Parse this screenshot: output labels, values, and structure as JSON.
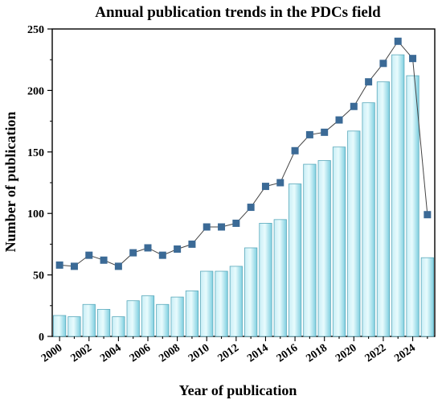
{
  "chart_data": {
    "type": "bar",
    "title": "Annual publication trends in the PDCs field",
    "xlabel": "Year of publication",
    "ylabel": "Number of publication",
    "ylim": [
      0,
      250
    ],
    "yticks": [
      0,
      50,
      100,
      150,
      200,
      250
    ],
    "categories": [
      "2000",
      "2001",
      "2002",
      "2003",
      "2004",
      "2005",
      "2006",
      "2007",
      "2008",
      "2009",
      "2010",
      "2011",
      "2012",
      "2013",
      "2014",
      "2015",
      "2016",
      "2017",
      "2018",
      "2019",
      "2020",
      "2021",
      "2022",
      "2023",
      "2024",
      "2025"
    ],
    "xtick_labels": [
      "2000",
      "2002",
      "2004",
      "2006",
      "2008",
      "2010",
      "2012",
      "2014",
      "2016",
      "2018",
      "2020",
      "2022",
      "2024"
    ],
    "series": [
      {
        "kind": "bar",
        "values": [
          17,
          16,
          26,
          22,
          16,
          29,
          33,
          26,
          32,
          37,
          53,
          53,
          57,
          72,
          92,
          95,
          124,
          140,
          143,
          154,
          167,
          190,
          207,
          229,
          212,
          64
        ]
      },
      {
        "kind": "line",
        "values": [
          58,
          57,
          66,
          62,
          57,
          68,
          72,
          66,
          71,
          75,
          89,
          89,
          92,
          105,
          122,
          125,
          151,
          164,
          166,
          176,
          187,
          207,
          222,
          240,
          226,
          99
        ]
      }
    ],
    "colors": {
      "bar_light": "#d8f5fa",
      "bar_dark": "#7fd0e0",
      "bar_stroke": "#5aa9bb",
      "marker": "#3b6a96",
      "line": "#444444"
    }
  }
}
